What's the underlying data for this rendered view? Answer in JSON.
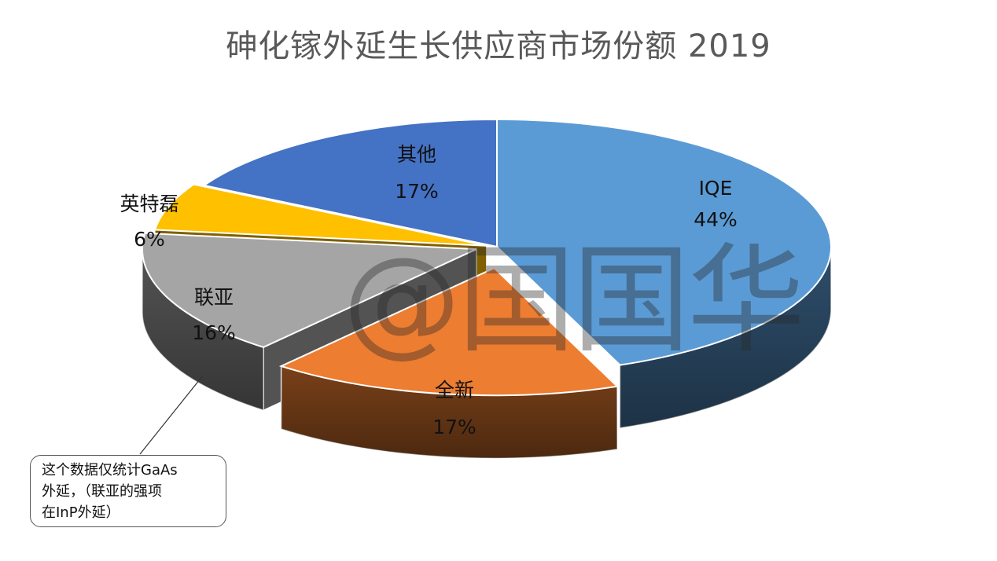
{
  "chart_data": {
    "type": "pie",
    "title": "砷化镓外延生长供应商市场份额 2019",
    "style": "3d-exploded",
    "slices": [
      {
        "name": "IQE",
        "value": 44,
        "label": "44%",
        "color": "#5B9BD5"
      },
      {
        "name": "全新",
        "value": 17,
        "label": "17%",
        "color": "#ED7D31"
      },
      {
        "name": "联亚",
        "value": 16,
        "label": "16%",
        "color": "#A5A5A5"
      },
      {
        "name": "英特磊",
        "value": 6,
        "label": "6%",
        "color": "#FFC000"
      },
      {
        "name": "其他",
        "value": 17,
        "label": "17%",
        "color": "#4472C4"
      }
    ],
    "annotation": {
      "lines": [
        "这个数据仅统计GaAs",
        "外延，（联亚的强项",
        "在InP外延）"
      ]
    }
  },
  "watermark": "@国国华"
}
